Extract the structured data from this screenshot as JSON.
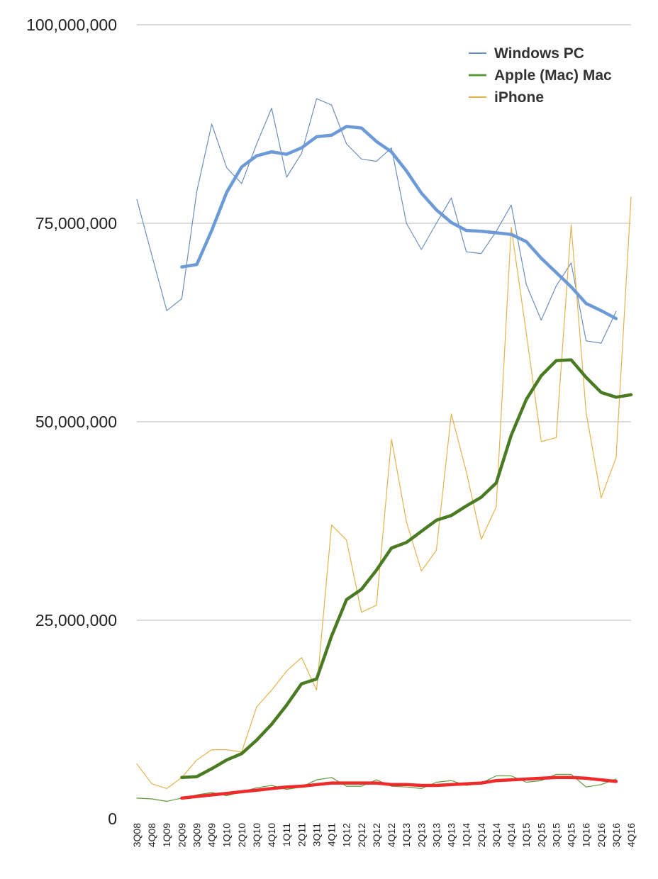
{
  "chart_data": {
    "type": "line",
    "title": "",
    "xlabel": "",
    "ylabel": "",
    "ylim": [
      0,
      100000000
    ],
    "yticks": [
      {
        "value": 0,
        "label": "0"
      },
      {
        "value": 25000000,
        "label": "25,000,000"
      },
      {
        "value": 50000000,
        "label": "50,000,000"
      },
      {
        "value": 75000000,
        "label": "75,000,000"
      },
      {
        "value": 100000000,
        "label": "100,000,000"
      }
    ],
    "categories": [
      "3Q08",
      "4Q08",
      "1Q09",
      "2Q09",
      "3Q09",
      "4Q09",
      "1Q10",
      "2Q10",
      "3Q10",
      "4Q10",
      "1Q11",
      "2Q11",
      "3Q11",
      "4Q11",
      "1Q12",
      "2Q12",
      "3Q12",
      "4Q12",
      "1Q13",
      "2Q13",
      "3Q13",
      "4Q13",
      "1Q14",
      "2Q14",
      "3Q14",
      "4Q14",
      "1Q15",
      "2Q15",
      "3Q15",
      "4Q15",
      "1Q16",
      "2Q16",
      "3Q16",
      "4Q16"
    ],
    "grid": true,
    "legend_position": "top-right",
    "series": [
      {
        "name": "Windows PC",
        "color": "#6b8fbf",
        "width": 1.2,
        "values": [
          78000000,
          71000000,
          64000000,
          65500000,
          79000000,
          87500000,
          82000000,
          80000000,
          85000000,
          89500000,
          80800000,
          83800000,
          90700000,
          89900000,
          85000000,
          83100000,
          82800000,
          84500000,
          75000000,
          71700000,
          75000000,
          78200000,
          71400000,
          71200000,
          74000000,
          77300000,
          67300000,
          62800000,
          67100000,
          70000000,
          60200000,
          59900000,
          63900000,
          null
        ]
      },
      {
        "name": "Apple (Mac) Mac",
        "color": "#5c9a3c",
        "width": 1.2,
        "values": [
          2600000,
          2500000,
          2200000,
          2600000,
          3000000,
          3300000,
          2900000,
          3400000,
          3900000,
          4200000,
          3700000,
          4000000,
          4900000,
          5200000,
          4100000,
          4100000,
          4900000,
          4100000,
          4000000,
          3800000,
          4600000,
          4800000,
          4200000,
          4500000,
          5400000,
          5400000,
          4600000,
          4800000,
          5600000,
          5600000,
          4000000,
          4300000,
          5000000,
          null
        ]
      },
      {
        "name": "iPhone",
        "color": "#e6b24c",
        "width": 1.2,
        "values": [
          6900000,
          4400000,
          3800000,
          5200000,
          7400000,
          8700000,
          8700000,
          8400000,
          14100000,
          16200000,
          18600000,
          20300000,
          16200000,
          37000000,
          35100000,
          26000000,
          26900000,
          47800000,
          37400000,
          31200000,
          33800000,
          51000000,
          43700000,
          35200000,
          39300000,
          74500000,
          61200000,
          47500000,
          48000000,
          74800000,
          51200000,
          40400000,
          45500000,
          78300000
        ]
      }
    ],
    "trends": [
      {
        "color": "#6b9ad6",
        "width": 4.5,
        "values": [
          null,
          null,
          null,
          69500000,
          69800000,
          74100000,
          78900000,
          82100000,
          83500000,
          84000000,
          83700000,
          84500000,
          85900000,
          86100000,
          87200000,
          87000000,
          85300000,
          84000000,
          81600000,
          78800000,
          76700000,
          75100000,
          74100000,
          74000000,
          73800000,
          73600000,
          72700000,
          70600000,
          68800000,
          67000000,
          64900000,
          64000000,
          63000000,
          null
        ]
      },
      {
        "color": "#4a7a22",
        "width": 4.5,
        "values": [
          null,
          null,
          null,
          5200000,
          5300000,
          6300000,
          7400000,
          8200000,
          9900000,
          11900000,
          14300000,
          17000000,
          17600000,
          23000000,
          27600000,
          28900000,
          31300000,
          34100000,
          34800000,
          36200000,
          37600000,
          38200000,
          39400000,
          40500000,
          42300000,
          48300000,
          52800000,
          55800000,
          57700000,
          57800000,
          55600000,
          53700000,
          53100000,
          53400000
        ]
      },
      {
        "color": "#ee2a2a",
        "width": 4.5,
        "values": [
          null,
          null,
          null,
          2600000,
          2800000,
          3000000,
          3200000,
          3400000,
          3600000,
          3800000,
          4000000,
          4100000,
          4300000,
          4500000,
          4500000,
          4500000,
          4500000,
          4300000,
          4300000,
          4200000,
          4200000,
          4300000,
          4400000,
          4500000,
          4800000,
          4900000,
          5000000,
          5100000,
          5200000,
          5200000,
          5100000,
          4900000,
          4700000,
          null
        ]
      }
    ]
  }
}
